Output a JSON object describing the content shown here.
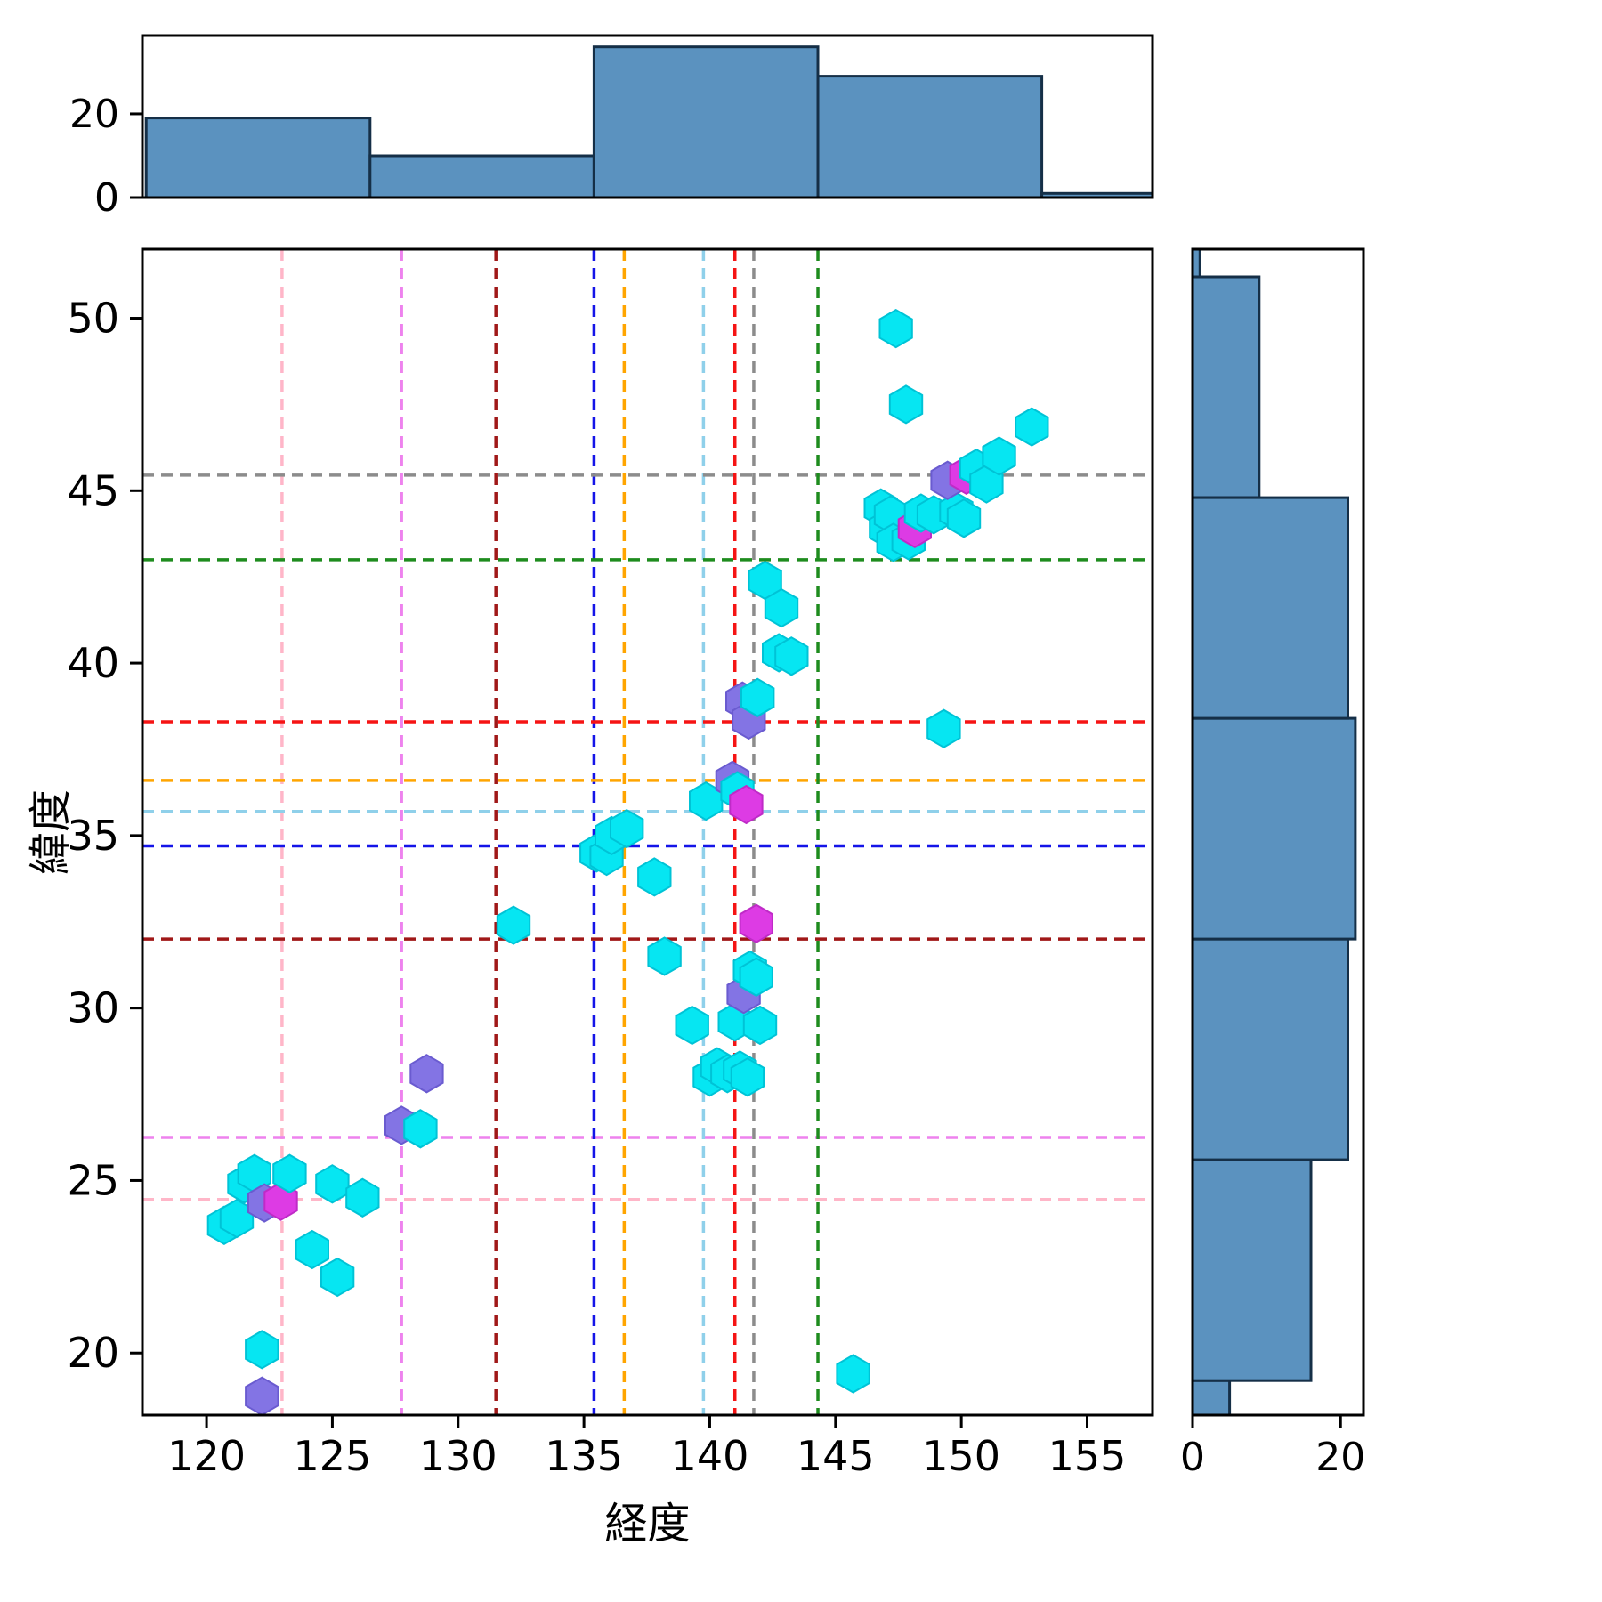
{
  "figure": {
    "xlabel": "経度",
    "ylabel": "緯度"
  },
  "chart_data": {
    "type": "scatter",
    "title": "",
    "xlabel": "経度",
    "ylabel": "緯度",
    "xlim": [
      117.45,
      157.6
    ],
    "ylim": [
      18.2,
      52.0
    ],
    "xticks": [
      120,
      125,
      130,
      135,
      140,
      145,
      150,
      155
    ],
    "yticks": [
      20,
      25,
      30,
      35,
      40,
      45,
      50
    ],
    "grid": false,
    "legend": false,
    "marker": "hexagon",
    "colors": {
      "hist_fill": "#5b92bf",
      "hist_edge": "#152f47",
      "spine": "#000000",
      "cyan": "#06e6f2",
      "cyan_edge": "#00c3d6",
      "purple": "#8374e4",
      "purple_edge": "#6a5bd0",
      "magenta": "#dd3be4",
      "magenta_edge": "#bf2bc7"
    },
    "points": [
      {
        "x": 120.7,
        "y": 23.7,
        "c": "cyan"
      },
      {
        "x": 121.2,
        "y": 23.9,
        "c": "cyan"
      },
      {
        "x": 121.5,
        "y": 24.9,
        "c": "cyan"
      },
      {
        "x": 121.9,
        "y": 25.2,
        "c": "cyan"
      },
      {
        "x": 122.3,
        "y": 24.35,
        "c": "purple"
      },
      {
        "x": 122.95,
        "y": 24.4,
        "c": "magenta"
      },
      {
        "x": 123.3,
        "y": 25.2,
        "c": "cyan"
      },
      {
        "x": 124.2,
        "y": 23.0,
        "c": "cyan"
      },
      {
        "x": 125.0,
        "y": 24.9,
        "c": "cyan"
      },
      {
        "x": 125.2,
        "y": 22.2,
        "c": "cyan"
      },
      {
        "x": 126.2,
        "y": 24.5,
        "c": "cyan"
      },
      {
        "x": 122.2,
        "y": 20.1,
        "c": "cyan"
      },
      {
        "x": 122.2,
        "y": 18.75,
        "c": "purple"
      },
      {
        "x": 127.75,
        "y": 26.6,
        "c": "purple"
      },
      {
        "x": 128.5,
        "y": 26.5,
        "c": "cyan"
      },
      {
        "x": 128.75,
        "y": 28.1,
        "c": "purple"
      },
      {
        "x": 132.2,
        "y": 32.4,
        "c": "cyan"
      },
      {
        "x": 135.5,
        "y": 34.5,
        "c": "cyan"
      },
      {
        "x": 135.9,
        "y": 34.4,
        "c": "cyan"
      },
      {
        "x": 136.1,
        "y": 35.0,
        "c": "cyan"
      },
      {
        "x": 136.7,
        "y": 35.2,
        "c": "cyan"
      },
      {
        "x": 137.8,
        "y": 33.8,
        "c": "cyan"
      },
      {
        "x": 138.2,
        "y": 31.5,
        "c": "cyan"
      },
      {
        "x": 139.3,
        "y": 29.5,
        "c": "cyan"
      },
      {
        "x": 139.85,
        "y": 36.0,
        "c": "cyan"
      },
      {
        "x": 140.0,
        "y": 28.0,
        "c": "cyan"
      },
      {
        "x": 140.3,
        "y": 28.3,
        "c": "cyan"
      },
      {
        "x": 140.7,
        "y": 28.1,
        "c": "cyan"
      },
      {
        "x": 141.0,
        "y": 29.6,
        "c": "cyan"
      },
      {
        "x": 141.2,
        "y": 28.2,
        "c": "cyan"
      },
      {
        "x": 141.5,
        "y": 28.0,
        "c": "cyan"
      },
      {
        "x": 142.0,
        "y": 29.5,
        "c": "cyan"
      },
      {
        "x": 141.35,
        "y": 30.4,
        "c": "purple"
      },
      {
        "x": 141.6,
        "y": 31.1,
        "c": "cyan"
      },
      {
        "x": 141.85,
        "y": 30.9,
        "c": "cyan"
      },
      {
        "x": 141.85,
        "y": 32.45,
        "c": "magenta"
      },
      {
        "x": 140.9,
        "y": 36.6,
        "c": "purple"
      },
      {
        "x": 141.1,
        "y": 36.3,
        "c": "cyan"
      },
      {
        "x": 141.45,
        "y": 35.9,
        "c": "magenta"
      },
      {
        "x": 141.3,
        "y": 38.9,
        "c": "purple"
      },
      {
        "x": 141.55,
        "y": 38.35,
        "c": "purple"
      },
      {
        "x": 141.9,
        "y": 39.0,
        "c": "cyan"
      },
      {
        "x": 142.2,
        "y": 42.4,
        "c": "cyan"
      },
      {
        "x": 142.85,
        "y": 41.6,
        "c": "cyan"
      },
      {
        "x": 142.75,
        "y": 40.3,
        "c": "cyan"
      },
      {
        "x": 143.25,
        "y": 40.2,
        "c": "cyan"
      },
      {
        "x": 149.3,
        "y": 38.1,
        "c": "cyan"
      },
      {
        "x": 147.4,
        "y": 49.7,
        "c": "cyan"
      },
      {
        "x": 147.8,
        "y": 47.5,
        "c": "cyan"
      },
      {
        "x": 152.8,
        "y": 46.85,
        "c": "cyan"
      },
      {
        "x": 146.8,
        "y": 44.5,
        "c": "cyan"
      },
      {
        "x": 147.0,
        "y": 43.9,
        "c": "cyan"
      },
      {
        "x": 147.2,
        "y": 44.3,
        "c": "cyan"
      },
      {
        "x": 147.3,
        "y": 43.5,
        "c": "cyan"
      },
      {
        "x": 147.9,
        "y": 43.55,
        "c": "cyan"
      },
      {
        "x": 148.15,
        "y": 43.9,
        "c": "magenta"
      },
      {
        "x": 148.4,
        "y": 44.35,
        "c": "cyan"
      },
      {
        "x": 148.9,
        "y": 44.3,
        "c": "cyan"
      },
      {
        "x": 149.8,
        "y": 44.4,
        "c": "cyan"
      },
      {
        "x": 150.1,
        "y": 44.2,
        "c": "cyan"
      },
      {
        "x": 149.45,
        "y": 45.3,
        "c": "purple"
      },
      {
        "x": 150.2,
        "y": 45.45,
        "c": "magenta"
      },
      {
        "x": 150.6,
        "y": 45.65,
        "c": "cyan"
      },
      {
        "x": 151.0,
        "y": 45.2,
        "c": "cyan"
      },
      {
        "x": 151.5,
        "y": 46.0,
        "c": "cyan"
      },
      {
        "x": 145.7,
        "y": 19.4,
        "c": "cyan"
      }
    ],
    "ref_lines": [
      {
        "x": 123.0,
        "y": 24.45,
        "color": "#ffb6c8"
      },
      {
        "x": 127.75,
        "y": 26.25,
        "color": "#ee82ee"
      },
      {
        "x": 131.5,
        "y": 32.0,
        "color": "#a01818"
      },
      {
        "x": 135.4,
        "y": 34.7,
        "color": "#1414e8"
      },
      {
        "x": 136.6,
        "y": 36.6,
        "color": "#ffa500"
      },
      {
        "x": 139.75,
        "y": 35.7,
        "color": "#8fd0ea"
      },
      {
        "x": 141.0,
        "y": 38.3,
        "color": "#f51414"
      },
      {
        "x": 141.75,
        "y": 45.45,
        "color": "#8c8c8c"
      },
      {
        "x": 144.3,
        "y": 43.0,
        "color": "#1e8c1e"
      }
    ],
    "marginal_top": {
      "type": "histogram",
      "bin_edges": [
        117.6,
        126.5,
        135.4,
        144.3,
        153.2,
        162.1
      ],
      "values": [
        19,
        10,
        36,
        29,
        1
      ],
      "yticks": [
        0,
        20
      ],
      "ymax": 38.7
    },
    "marginal_right": {
      "type": "histogram",
      "bin_edges": [
        12.8,
        19.2,
        25.6,
        32.0,
        38.4,
        44.8,
        51.2,
        57.6
      ],
      "values": [
        5,
        16,
        21,
        22,
        21,
        9,
        1
      ],
      "xticks": [
        0,
        20
      ],
      "xmax": 23.1
    }
  }
}
